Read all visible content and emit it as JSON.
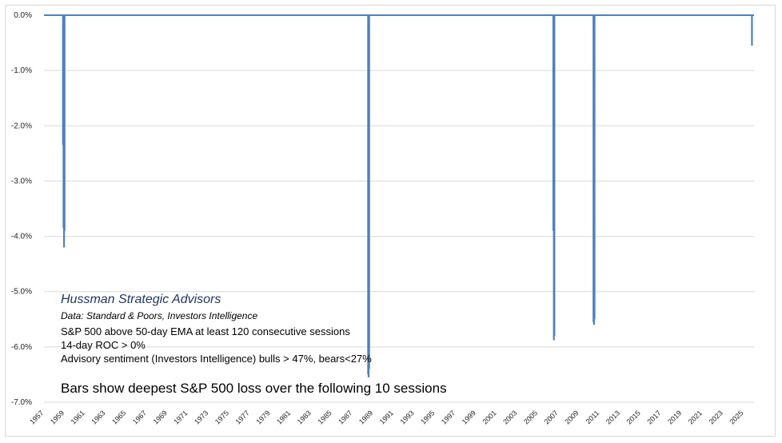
{
  "chart_data": {
    "type": "bar",
    "ylim": [
      -7.0,
      0.0
    ],
    "yticks": [
      "0.0%",
      "-1.0%",
      "-2.0%",
      "-3.0%",
      "-4.0%",
      "-5.0%",
      "-6.0%",
      "-7.0%"
    ],
    "xlim": [
      1957.0,
      2026.0
    ],
    "xticks": [
      "1957",
      "1959",
      "1961",
      "1963",
      "1965",
      "1967",
      "1969",
      "1971",
      "1973",
      "1975",
      "1977",
      "1979",
      "1981",
      "1983",
      "1985",
      "1987",
      "1989",
      "1991",
      "1993",
      "1995",
      "1997",
      "1999",
      "2001",
      "2003",
      "2005",
      "2007",
      "2009",
      "2011",
      "2013",
      "2015",
      "2017",
      "2019",
      "2021",
      "2023",
      "2025"
    ],
    "grid": true,
    "color": "#4f81bd",
    "series": [
      {
        "x": [
          1958.85,
          1958.9,
          1958.95,
          1959.0,
          1988.5,
          1988.55,
          1988.6,
          2006.5,
          2006.55,
          2006.6,
          2010.4,
          2010.45,
          2010.5,
          2025.8
        ],
        "values": [
          -2.35,
          -3.85,
          -4.2,
          -3.9,
          -6.5,
          -6.55,
          -6.4,
          -3.9,
          -5.88,
          -5.8,
          -5.55,
          -5.6,
          -5.5,
          -0.55
        ]
      }
    ]
  },
  "annotations": {
    "brand": "Hussman Strategic Advisors",
    "source": "Data: Standard & Poors, Investors Intelligence",
    "line1": "S&P 500 above 50-day EMA at least 120 consecutive sessions",
    "line2": "14-day ROC > 0%",
    "line3": "Advisory sentiment (Investors Intelligence) bulls > 47%,  bears<27%",
    "note": "Bars show deepest S&P 500 loss over the following 10 sessions"
  }
}
